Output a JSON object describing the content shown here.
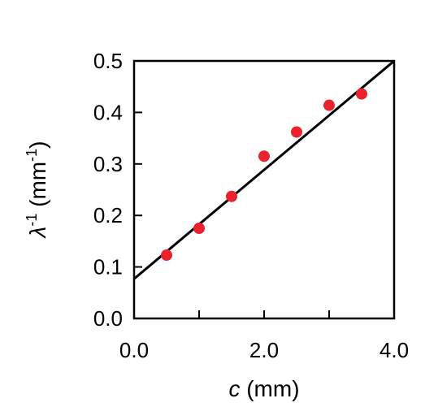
{
  "chart_data": {
    "type": "scatter",
    "xlabel": {
      "var": "c",
      "rest": " (mm)"
    },
    "ylabel": {
      "var": "λ",
      "sup": "-1",
      "rest": " (mm",
      "sup2": "-1",
      "end": ")"
    },
    "xlim": [
      0,
      4
    ],
    "ylim": [
      0,
      0.5
    ],
    "x_ticks": [
      0,
      1,
      2,
      3,
      4
    ],
    "x_tick_labels": [
      "0.0",
      "",
      "2.0",
      "",
      "4.0"
    ],
    "y_ticks": [
      0,
      0.1,
      0.2,
      0.3,
      0.4,
      0.5
    ],
    "y_tick_labels": [
      "0.0",
      "0.1",
      "0.2",
      "0.3",
      "0.4",
      "0.5"
    ],
    "grid": false,
    "series": [
      {
        "x": [
          0.5,
          1.0,
          1.5,
          2.0,
          2.5,
          3.0,
          3.5
        ],
        "y": [
          0.123,
          0.175,
          0.237,
          0.315,
          0.362,
          0.414,
          0.436
        ],
        "color": "#e8232e"
      }
    ],
    "fit_line": {
      "x": [
        0,
        4
      ],
      "y": [
        0.077,
        0.5
      ],
      "color": "#000000"
    }
  }
}
